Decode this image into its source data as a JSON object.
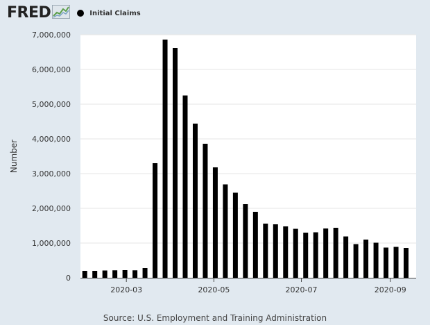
{
  "header": {
    "logo_text": "FRED",
    "logo_mark_icon": "line-chart-icon"
  },
  "colors": {
    "page_bg": "#e1e9f0",
    "plot_bg": "#ffffff",
    "bar": "#000000",
    "grid": "#e6e6e6",
    "text": "#333333"
  },
  "chart_data": {
    "type": "bar",
    "legend": [
      {
        "name": "Initial Claims",
        "color": "#000000",
        "position": "top-left"
      }
    ],
    "ylabel": "Number",
    "xlabel": "",
    "ylim": [
      0,
      7000000
    ],
    "yticks": [
      0,
      1000000,
      2000000,
      3000000,
      4000000,
      5000000,
      6000000,
      7000000
    ],
    "ytick_labels": [
      "0",
      "1,000,000",
      "2,000,000",
      "3,000,000",
      "4,000,000",
      "5,000,000",
      "6,000,000",
      "7,000,000"
    ],
    "xlim": [
      "2020-01-29",
      "2020-09-19"
    ],
    "xticks": [
      {
        "date": "2020-03-01",
        "label": "2020-03"
      },
      {
        "date": "2020-05-01",
        "label": "2020-05"
      },
      {
        "date": "2020-07-01",
        "label": "2020-07"
      },
      {
        "date": "2020-09-01",
        "label": "2020-09"
      }
    ],
    "grid": true,
    "series": [
      {
        "name": "Initial Claims",
        "x": [
          "2020-02-01",
          "2020-02-08",
          "2020-02-15",
          "2020-02-22",
          "2020-02-29",
          "2020-03-07",
          "2020-03-14",
          "2020-03-21",
          "2020-03-28",
          "2020-04-04",
          "2020-04-11",
          "2020-04-18",
          "2020-04-25",
          "2020-05-02",
          "2020-05-09",
          "2020-05-16",
          "2020-05-23",
          "2020-05-30",
          "2020-06-06",
          "2020-06-13",
          "2020-06-20",
          "2020-06-27",
          "2020-07-04",
          "2020-07-11",
          "2020-07-18",
          "2020-07-25",
          "2020-08-01",
          "2020-08-08",
          "2020-08-15",
          "2020-08-22",
          "2020-08-29",
          "2020-09-05",
          "2020-09-12"
        ],
        "values": [
          200000,
          200000,
          210000,
          215000,
          220000,
          215000,
          280000,
          3300000,
          6860000,
          6620000,
          5250000,
          4440000,
          3860000,
          3180000,
          2690000,
          2450000,
          2120000,
          1900000,
          1560000,
          1540000,
          1480000,
          1410000,
          1300000,
          1310000,
          1420000,
          1440000,
          1190000,
          970000,
          1100000,
          1010000,
          870000,
          890000,
          860000
        ]
      }
    ]
  },
  "source": "Source: U.S. Employment and Training Administration"
}
